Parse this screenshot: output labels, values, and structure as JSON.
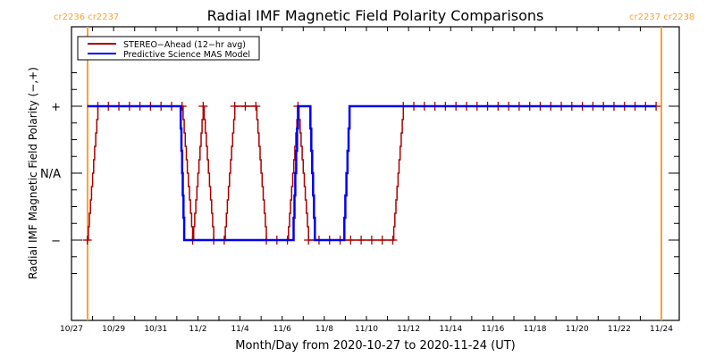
{
  "chart_data": {
    "type": "line",
    "title": "Radial IMF Magnetic Field Polarity Comparisons",
    "xlabel": "Month/Day from 2020-10-27 to 2020-11-24 (UT)",
    "ylabel": "Radial IMF Magnetic Field Polarity (−,+)",
    "x_unit": "days since 2020-10-27 00:00 UT",
    "xlim": [
      0,
      28
    ],
    "ylim": [
      -1.6,
      1.6
    ],
    "x_ticks": [
      0,
      2,
      4,
      6,
      8,
      10,
      12,
      14,
      16,
      18,
      20,
      22,
      24,
      26,
      28
    ],
    "x_tick_labels": [
      "10/27",
      "10/29",
      "10/31",
      "11/2",
      "11/4",
      "11/6",
      "11/8",
      "11/10",
      "11/12",
      "11/14",
      "11/16",
      "11/18",
      "11/20",
      "11/22",
      "11/24"
    ],
    "y_ticks": [
      1,
      0,
      -1
    ],
    "y_tick_labels": [
      "+",
      "N/A",
      "−"
    ],
    "legend": {
      "placement": "top-left",
      "entries": [
        {
          "label": "STEREO−Ahead (12−hr avg)",
          "color": "#aa0000"
        },
        {
          "label": "Predictive Science MAS Model",
          "color": "#0000ee"
        }
      ]
    },
    "series": [
      {
        "name": "STEREO-Ahead (12-hr avg)",
        "color": "#aa0000",
        "markers": true,
        "points": [
          [
            0.75,
            -1
          ],
          [
            1.25,
            1
          ],
          [
            1.75,
            1
          ],
          [
            2.25,
            1
          ],
          [
            2.75,
            1
          ],
          [
            3.25,
            1
          ],
          [
            3.75,
            1
          ],
          [
            4.25,
            1
          ],
          [
            4.75,
            1
          ],
          [
            5.25,
            1
          ],
          [
            5.75,
            -1
          ],
          [
            6.25,
            1
          ],
          [
            6.75,
            -1
          ],
          [
            7.25,
            -1
          ],
          [
            7.75,
            1
          ],
          [
            8.25,
            1
          ],
          [
            8.75,
            1
          ],
          [
            9.25,
            -1
          ],
          [
            9.75,
            -1
          ],
          [
            10.25,
            -1
          ],
          [
            10.75,
            1
          ],
          [
            11.25,
            -1
          ],
          [
            11.75,
            -1
          ],
          [
            12.25,
            -1
          ],
          [
            12.75,
            -1
          ],
          [
            13.25,
            -1
          ],
          [
            13.75,
            -1
          ],
          [
            14.25,
            -1
          ],
          [
            14.75,
            -1
          ],
          [
            15.25,
            -1
          ],
          [
            15.75,
            1
          ],
          [
            16.25,
            1
          ],
          [
            16.75,
            1
          ],
          [
            17.25,
            1
          ],
          [
            17.75,
            1
          ],
          [
            18.25,
            1
          ],
          [
            18.75,
            1
          ],
          [
            19.25,
            1
          ],
          [
            19.75,
            1
          ],
          [
            20.25,
            1
          ],
          [
            20.75,
            1
          ],
          [
            21.25,
            1
          ],
          [
            21.75,
            1
          ],
          [
            22.25,
            1
          ],
          [
            22.75,
            1
          ],
          [
            23.25,
            1
          ],
          [
            23.75,
            1
          ],
          [
            24.25,
            1
          ],
          [
            24.75,
            1
          ],
          [
            25.25,
            1
          ],
          [
            25.75,
            1
          ],
          [
            26.25,
            1
          ],
          [
            26.75,
            1
          ],
          [
            27.25,
            1
          ],
          [
            27.75,
            1
          ]
        ]
      },
      {
        "name": "Predictive Science MAS Model",
        "color": "#0000ee",
        "markers": false,
        "points": [
          [
            0.75,
            1
          ],
          [
            5.15,
            1
          ],
          [
            5.35,
            -1
          ],
          [
            10.5,
            -1
          ],
          [
            10.75,
            1
          ],
          [
            11.3,
            1
          ],
          [
            11.55,
            -1
          ],
          [
            12.9,
            -1
          ],
          [
            13.2,
            1
          ],
          [
            27.75,
            1
          ]
        ]
      }
    ],
    "carrington_markers": [
      {
        "x": 0.75,
        "label": "cr2236 cr2237",
        "color": "#ffa033"
      },
      {
        "x": 28.0,
        "label": "cr2237 cr2238",
        "color": "#ffa033"
      }
    ],
    "grid": false
  }
}
